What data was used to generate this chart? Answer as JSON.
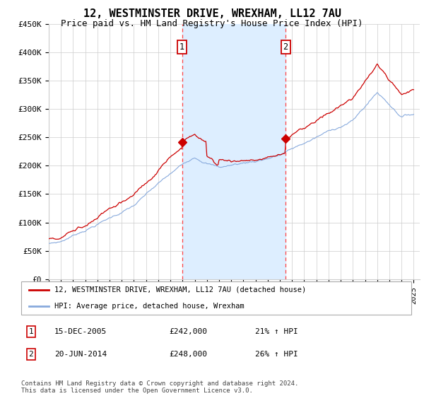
{
  "title": "12, WESTMINSTER DRIVE, WREXHAM, LL12 7AU",
  "subtitle": "Price paid vs. HM Land Registry's House Price Index (HPI)",
  "title_fontsize": 11,
  "subtitle_fontsize": 9,
  "ylabel_values": [
    0,
    50000,
    100000,
    150000,
    200000,
    250000,
    300000,
    350000,
    400000,
    450000
  ],
  "ylim": [
    0,
    450000
  ],
  "xlim_start": 1995.0,
  "xlim_end": 2025.5,
  "marker1_x": 2005.96,
  "marker1_y": 242000,
  "marker2_x": 2014.47,
  "marker2_y": 248000,
  "marker1_label": "15-DEC-2005",
  "marker2_label": "20-JUN-2014",
  "marker1_price": "£242,000",
  "marker2_price": "£248,000",
  "marker1_hpi": "21% ↑ HPI",
  "marker2_hpi": "26% ↑ HPI",
  "legend_line1": "12, WESTMINSTER DRIVE, WREXHAM, LL12 7AU (detached house)",
  "legend_line2": "HPI: Average price, detached house, Wrexham",
  "footnote": "Contains HM Land Registry data © Crown copyright and database right 2024.\nThis data is licensed under the Open Government Licence v3.0.",
  "line1_color": "#cc0000",
  "line2_color": "#88aadd",
  "shade_color": "#ddeeff",
  "vline_color": "#ff4444",
  "background_color": "#ffffff",
  "grid_color": "#cccccc"
}
